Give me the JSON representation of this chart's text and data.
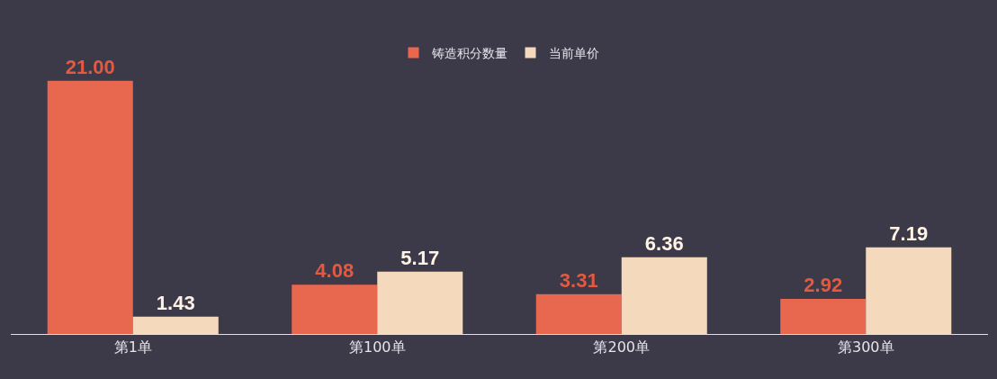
{
  "chart_data": {
    "type": "bar",
    "categories": [
      "第1单",
      "第100单",
      "第200单",
      "第300单"
    ],
    "series": [
      {
        "name": "铸造积分数量",
        "color": "#e8674f",
        "values": [
          21.0,
          4.08,
          3.31,
          2.92
        ],
        "value_labels": [
          "21.00",
          "4.08",
          "3.31",
          "2.92"
        ]
      },
      {
        "name": "当前单价",
        "color": "#f5d9bd",
        "values": [
          1.43,
          5.17,
          6.36,
          7.19
        ],
        "value_labels": [
          "1.43",
          "5.17",
          "6.36",
          "7.19"
        ]
      }
    ],
    "legend": "top",
    "grid": false
  }
}
